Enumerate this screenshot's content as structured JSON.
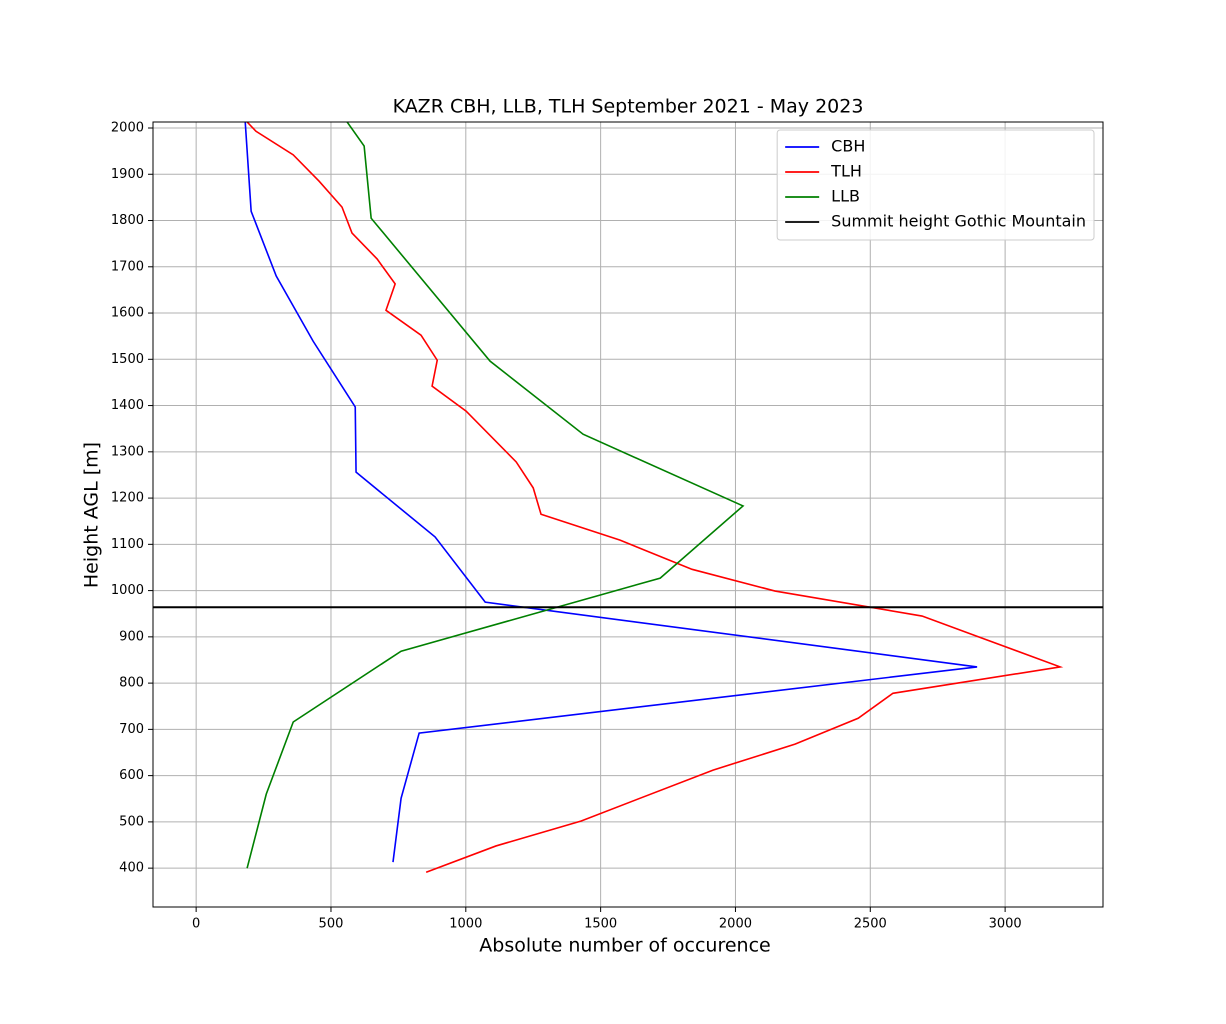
{
  "chart_data": {
    "type": "line",
    "title": "KAZR CBH, LLB, TLH September 2021 - May 2023",
    "x_label": "Absolute number of occurence",
    "y_label": "Height AGL [m]",
    "xlim": [
      -160,
      3363
    ],
    "ylim": [
      316,
      2013
    ],
    "xticks": [
      0,
      500,
      1000,
      1500,
      2000,
      2500,
      3000
    ],
    "yticks": [
      400,
      500,
      600,
      700,
      800,
      900,
      1000,
      1100,
      1200,
      1300,
      1400,
      1500,
      1600,
      1700,
      1800,
      1900,
      2000
    ],
    "grid": true,
    "legend": "upper right",
    "series": [
      {
        "name": "CBH",
        "color": "#0000ff",
        "x": [
          182,
          204,
          297,
          434,
          590,
          593,
          886,
          1072,
          2896,
          827,
          760,
          730
        ],
        "y": [
          2013,
          1820,
          1680,
          1539,
          1397,
          1256,
          1116,
          975,
          835,
          692,
          551,
          413
        ]
      },
      {
        "name": "TLH",
        "color": "#ff0000",
        "x": [
          189,
          222,
          360,
          456,
          541,
          578,
          671,
          738,
          704,
          834,
          894,
          875,
          1001,
          1187,
          1250,
          1279,
          1572,
          1839,
          2147,
          2692,
          3204,
          2584,
          2455,
          2221,
          1917,
          1428,
          1112,
          853
        ],
        "y": [
          2013,
          1993,
          1942,
          1885,
          1829,
          1773,
          1717,
          1663,
          1606,
          1552,
          1498,
          1442,
          1388,
          1278,
          1222,
          1165,
          1109,
          1046,
          999,
          945,
          835,
          778,
          724,
          668,
          612,
          502,
          448,
          391
        ]
      },
      {
        "name": "LLB",
        "color": "#008000",
        "x": [
          560,
          623,
          649,
          1090,
          1435,
          2028,
          1721,
          760,
          360,
          260,
          189
        ],
        "y": [
          2013,
          1961,
          1805,
          1496,
          1338,
          1183,
          1027,
          869,
          716,
          560,
          400
        ]
      }
    ],
    "reference_line": {
      "name": "Summit height Gothic Mountain",
      "color": "#000000",
      "y": 964
    }
  }
}
